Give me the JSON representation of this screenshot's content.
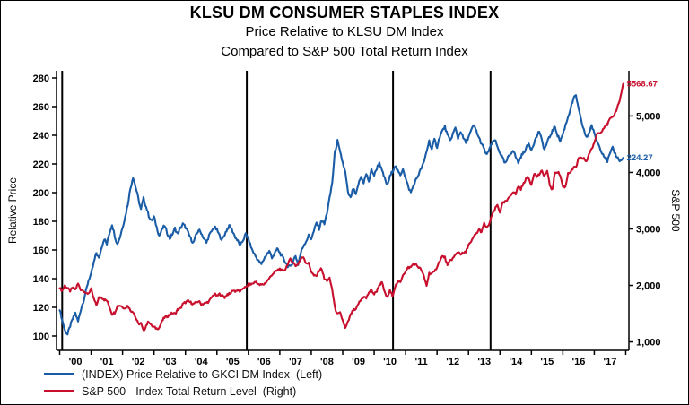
{
  "title": "KLSU DM CONSUMER STAPLES INDEX",
  "subtitle1": "Price Relative to KLSU DM Index",
  "subtitle2": "Compared to S&P 500 Total Return Index",
  "left_axis_label": "Relative Price",
  "right_axis_label": "S&P 500",
  "end_labels": {
    "red": "5568.67",
    "blue": "224.27"
  },
  "legend": [
    {
      "label": "(INDEX) Price Relative to GKCI DM Index  (Left)",
      "color": "#1a5da6"
    },
    {
      "label": "S&P 500 - Index Total Return Level  (Right)",
      "color": "#c8102e"
    }
  ],
  "chart_data": {
    "type": "line",
    "xlim": [
      1999.9,
      2018.1
    ],
    "x_start": 2000.0,
    "x_step_months": 1,
    "x_tick_years": [
      2000,
      2001,
      2002,
      2003,
      2004,
      2005,
      2006,
      2007,
      2008,
      2009,
      2010,
      2011,
      2012,
      2013,
      2014,
      2015,
      2016,
      2017,
      2018
    ],
    "x_labels": [
      "'00",
      "'01",
      "'02",
      "'03",
      "'04",
      "'05",
      "'06",
      "'07",
      "'08",
      "'09",
      "'10",
      "'11",
      "'12",
      "'13",
      "'14",
      "'15",
      "'16",
      "'17"
    ],
    "left_ylim": [
      90,
      285
    ],
    "left_ticks": [
      100,
      120,
      140,
      160,
      180,
      200,
      220,
      240,
      260,
      280
    ],
    "right_ylim": [
      850,
      5800
    ],
    "right_ticks": [
      {
        "v": 1000,
        "label": "1,000"
      },
      {
        "v": 2000,
        "label": "2,000"
      },
      {
        "v": 3000,
        "label": "3,000"
      },
      {
        "v": 4000,
        "label": "4,000"
      },
      {
        "v": 5000,
        "label": "5,000"
      }
    ],
    "event_lines_x": [
      2000.08,
      2005.95,
      2010.6,
      2013.7
    ],
    "series": [
      {
        "name": "(INDEX) Price Relative to GKCI DM Index",
        "axis": "left",
        "color": "#1a5da6",
        "values": [
          118,
          111,
          104,
          101,
          107,
          112,
          116,
          110,
          118,
          124,
          131,
          139,
          143,
          151,
          158,
          154,
          162,
          168,
          164,
          172,
          178,
          170,
          164,
          169,
          176,
          183,
          192,
          203,
          211,
          204,
          196,
          188,
          196,
          190,
          184,
          180,
          183,
          176,
          170,
          174,
          177,
          172,
          168,
          171,
          175,
          171,
          175,
          178,
          176,
          172,
          168,
          165,
          170,
          174,
          172,
          168,
          165,
          170,
          173,
          176,
          174,
          170,
          167,
          171,
          175,
          177,
          173,
          169,
          166,
          163,
          167,
          171,
          168,
          162,
          158,
          155,
          152,
          150,
          154,
          157,
          159,
          155,
          157,
          161,
          158,
          155,
          152,
          149,
          148,
          152,
          156,
          150,
          158,
          163,
          166,
          170,
          168,
          173,
          179,
          175,
          181,
          178,
          186,
          196,
          207,
          228,
          236,
          228,
          221,
          214,
          200,
          196,
          203,
          198,
          206,
          211,
          207,
          213,
          208,
          216,
          212,
          217,
          221,
          215,
          210,
          205,
          211,
          215,
          219,
          215,
          212,
          217,
          210,
          204,
          200,
          205,
          209,
          213,
          217,
          221,
          229,
          236,
          230,
          237,
          232,
          239,
          243,
          246,
          240,
          236,
          241,
          245,
          238,
          243,
          238,
          235,
          239,
          243,
          247,
          243,
          238,
          234,
          230,
          226,
          231,
          234,
          237,
          232,
          228,
          224,
          220,
          224,
          227,
          230,
          225,
          221,
          225,
          228,
          231,
          234,
          230,
          235,
          239,
          243,
          236,
          230,
          235,
          239,
          243,
          246,
          240,
          236,
          241,
          247,
          253,
          259,
          265,
          268,
          258,
          250,
          244,
          238,
          242,
          247,
          241,
          236,
          232,
          228,
          225,
          222,
          227,
          231,
          227,
          224,
          222,
          224.27
        ]
      },
      {
        "name": "S&P 500 - Index Total Return Level",
        "axis": "right",
        "color": "#c8102e",
        "values": [
          1950,
          1905,
          1998,
          1950,
          1902,
          1962,
          1925,
          2030,
          1928,
          1918,
          1852,
          1862,
          1930,
          1762,
          1652,
          1780,
          1792,
          1748,
          1730,
          1622,
          1492,
          1522,
          1632,
          1648,
          1622,
          1592,
          1650,
          1552,
          1540,
          1430,
          1318,
          1328,
          1188,
          1292,
          1368,
          1288,
          1258,
          1238,
          1250,
          1360,
          1432,
          1450,
          1482,
          1512,
          1496,
          1572,
          1586,
          1668,
          1700,
          1722,
          1698,
          1672,
          1692,
          1722,
          1668,
          1678,
          1692,
          1718,
          1788,
          1852,
          1808,
          1846,
          1818,
          1788,
          1846,
          1848,
          1916,
          1898,
          1914,
          1886,
          1958,
          1962,
          2012,
          2018,
          2042,
          2068,
          2008,
          2010,
          2022,
          2070,
          2124,
          2192,
          2234,
          2262,
          2294,
          2248,
          2276,
          2378,
          2460,
          2418,
          2346,
          2380,
          2468,
          2508,
          2398,
          2388,
          2250,
          2172,
          2162,
          2268,
          2298,
          2106,
          2088,
          2118,
          1930,
          1606,
          1490,
          1508,
          1382,
          1238,
          1348,
          1478,
          1560,
          1562,
          1680,
          1742,
          1806,
          1772,
          1878,
          1914,
          1844,
          1902,
          2012,
          2044,
          1878,
          1780,
          1904,
          1818,
          1980,
          2056,
          2058,
          2194,
          2242,
          2318,
          2320,
          2388,
          2362,
          2322,
          2274,
          2150,
          1998,
          2216,
          2212,
          2234,
          2334,
          2434,
          2512,
          2496,
          2346,
          2442,
          2478,
          2534,
          2598,
          2558,
          2566,
          2590,
          2724,
          2760,
          2864,
          2918,
          2986,
          2946,
          3096,
          3006,
          3102,
          3244,
          3340,
          3424,
          3298,
          3448,
          3478,
          3512,
          3594,
          3664,
          3614,
          3758,
          3710,
          3800,
          3902,
          3892,
          3784,
          3990,
          3926,
          3966,
          4018,
          3942,
          4022,
          3778,
          3688,
          4000,
          4012,
          3948,
          3752,
          3744,
          3996,
          4010,
          4076,
          4090,
          4240,
          4248,
          4252,
          4180,
          4336,
          4420,
          4508,
          4688,
          4700,
          4748,
          4820,
          4850,
          4950,
          4962,
          5060,
          5180,
          5336,
          5568.67
        ]
      }
    ]
  }
}
